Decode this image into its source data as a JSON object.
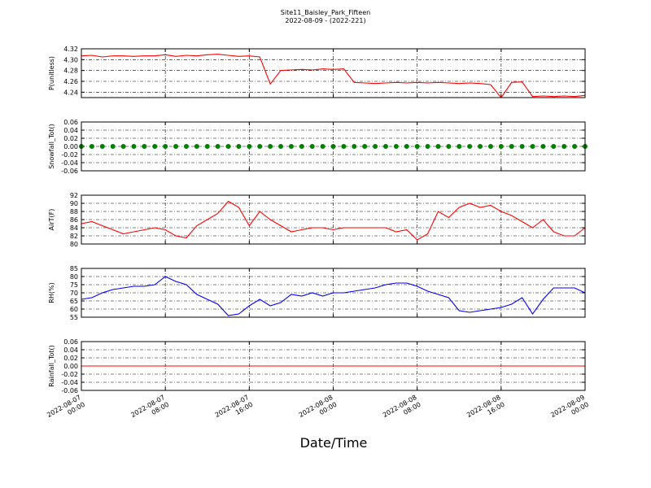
{
  "chart_data": {
    "type": "subplots",
    "title": "Site11_Baisley_Park_Fifteen",
    "subtitle": "2022-08-09 - (2022-221)",
    "xlabel": "Date/Time",
    "grid": true,
    "x": [
      "2022-08-07 00:00",
      "2022-08-07 01:00",
      "2022-08-07 02:00",
      "2022-08-07 03:00",
      "2022-08-07 04:00",
      "2022-08-07 05:00",
      "2022-08-07 06:00",
      "2022-08-07 07:00",
      "2022-08-07 08:00",
      "2022-08-07 09:00",
      "2022-08-07 10:00",
      "2022-08-07 11:00",
      "2022-08-07 12:00",
      "2022-08-07 13:00",
      "2022-08-07 14:00",
      "2022-08-07 15:00",
      "2022-08-07 16:00",
      "2022-08-07 17:00",
      "2022-08-07 18:00",
      "2022-08-07 19:00",
      "2022-08-07 20:00",
      "2022-08-07 21:00",
      "2022-08-07 22:00",
      "2022-08-07 23:00",
      "2022-08-08 00:00",
      "2022-08-08 01:00",
      "2022-08-08 02:00",
      "2022-08-08 03:00",
      "2022-08-08 04:00",
      "2022-08-08 05:00",
      "2022-08-08 06:00",
      "2022-08-08 07:00",
      "2022-08-08 08:00",
      "2022-08-08 09:00",
      "2022-08-08 10:00",
      "2022-08-08 11:00",
      "2022-08-08 12:00",
      "2022-08-08 13:00",
      "2022-08-08 14:00",
      "2022-08-08 15:00",
      "2022-08-08 16:00",
      "2022-08-08 17:00",
      "2022-08-08 18:00",
      "2022-08-08 19:00",
      "2022-08-08 20:00",
      "2022-08-08 21:00",
      "2022-08-08 22:00",
      "2022-08-08 23:00",
      "2022-08-09 00:00"
    ],
    "xlim": [
      "2022-08-07 00:00",
      "2022-08-09 00:00"
    ],
    "xticks": [
      "2022-08-07 00:00",
      "2022-08-07 08:00",
      "2022-08-07 16:00",
      "2022-08-08 00:00",
      "2022-08-08 08:00",
      "2022-08-08 16:00",
      "2022-08-09 00:00"
    ],
    "panels": [
      {
        "type": "line",
        "ylabel": "P(unitless)",
        "color": "#ff0000",
        "ylim": [
          4.23,
          4.32
        ],
        "yticks": [
          4.24,
          4.26,
          4.28,
          {
            "value": 4.3,
            "label": "4.30"
          },
          4.32
        ],
        "values": [
          4.307,
          4.308,
          4.305,
          4.307,
          4.307,
          4.306,
          4.307,
          4.307,
          4.309,
          4.306,
          4.308,
          4.307,
          4.309,
          4.31,
          4.308,
          4.306,
          4.307,
          4.305,
          4.255,
          4.28,
          4.281,
          4.282,
          4.281,
          4.283,
          4.282,
          4.283,
          4.258,
          4.257,
          4.256,
          4.257,
          4.258,
          4.257,
          4.258,
          4.257,
          4.258,
          4.257,
          4.256,
          4.257,
          4.256,
          4.254,
          4.23,
          4.258,
          4.259,
          4.232,
          4.233,
          4.232,
          4.233,
          4.232,
          4.234
        ]
      },
      {
        "type": "scatter",
        "ylabel": "Snowfall_Tot()",
        "color": "#008000",
        "ylim": [
          -0.06,
          0.06
        ],
        "yticks": [
          -0.06,
          -0.04,
          -0.02,
          {
            "value": 0,
            "label": "0.00"
          },
          0.02,
          0.04,
          0.06
        ],
        "values": [
          0,
          0,
          0,
          0,
          0,
          0,
          0,
          0,
          0,
          0,
          0,
          0,
          0,
          0,
          0,
          0,
          0,
          0,
          0,
          0,
          0,
          0,
          0,
          0,
          0,
          0,
          0,
          0,
          0,
          0,
          0,
          0,
          0,
          0,
          0,
          0,
          0,
          0,
          0,
          0,
          0,
          0,
          0,
          0,
          0,
          0,
          0,
          0,
          0
        ]
      },
      {
        "type": "line",
        "ylabel": "AirT(F)",
        "color": "#ff0000",
        "ylim": [
          80,
          92
        ],
        "yticks": [
          80,
          82,
          84,
          86,
          88,
          90,
          92
        ],
        "values": [
          85,
          85.5,
          84.5,
          83.5,
          82.5,
          83,
          83.5,
          84,
          83.5,
          82,
          81.5,
          84.5,
          86,
          87.5,
          90.5,
          89,
          84.5,
          88,
          86,
          84.5,
          83,
          83.5,
          84,
          84,
          83.5,
          84,
          84,
          84,
          84,
          84,
          83,
          83.5,
          81,
          82.5,
          88,
          86.5,
          89,
          90,
          89,
          89.5,
          88,
          87,
          85.5,
          84,
          86,
          83,
          82,
          82,
          84
        ]
      },
      {
        "type": "line",
        "ylabel": "RH(%)",
        "color": "#0000ff",
        "ylim": [
          55,
          85
        ],
        "yticks": [
          55,
          60,
          65,
          70,
          75,
          80,
          85
        ],
        "values": [
          66,
          67,
          70,
          72,
          73,
          74,
          74,
          75,
          80,
          77,
          75,
          69,
          66,
          63,
          56,
          57,
          62,
          66,
          62,
          64,
          69,
          68,
          70,
          68,
          70,
          70,
          71,
          72,
          73,
          75,
          76,
          76,
          74,
          71,
          69,
          67,
          59,
          58,
          59,
          60,
          61,
          63,
          67,
          57,
          66,
          73,
          73,
          73,
          70
        ]
      },
      {
        "type": "line",
        "ylabel": "Rainfall_Tot()",
        "color": "#ff0000",
        "ylim": [
          -0.06,
          0.06
        ],
        "yticks": [
          -0.06,
          -0.04,
          -0.02,
          {
            "value": 0,
            "label": "0.00"
          },
          0.02,
          0.04,
          0.06
        ],
        "values": [
          0,
          0,
          0,
          0,
          0,
          0,
          0,
          0,
          0,
          0,
          0,
          0,
          0,
          0,
          0,
          0,
          0,
          0,
          0,
          0,
          0,
          0,
          0,
          0,
          0,
          0,
          0,
          0,
          0,
          0,
          0,
          0,
          0,
          0,
          0,
          0,
          0,
          0,
          0,
          0,
          0,
          0,
          0,
          0,
          0,
          0,
          0,
          0,
          0
        ]
      }
    ]
  }
}
